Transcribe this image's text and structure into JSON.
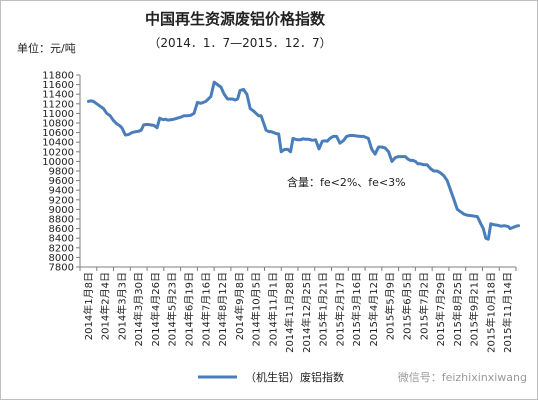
{
  "chart_data": {
    "type": "line",
    "title": "中国再生资源废铝价格指数",
    "subtitle": "（2014．1．7—2015．12．7）",
    "unit_label": "单位：元/吨",
    "annotation": "含量：fe<2%、fe<3%",
    "legend_label": "（机生铝）废铝指数",
    "legend_position": "bottom",
    "watermark": "微信号：feizhixinxiwang",
    "line_color": "#4a7ebb",
    "grid": false,
    "ylim": [
      7800,
      11800
    ],
    "yticks": [
      7800,
      8000,
      8200,
      8400,
      8600,
      8800,
      9000,
      9200,
      9400,
      9600,
      9800,
      10000,
      10200,
      10400,
      10600,
      10800,
      11000,
      11200,
      11400,
      11600,
      11800
    ],
    "categories": [
      "2014年1月8日",
      "2014年2月4日",
      "2014年3月3日",
      "2014年3月30日",
      "2014年4月26日",
      "2014年5月23日",
      "2014年6月19日",
      "2014年7月16日",
      "2014年8月12日",
      "2014年9月8日",
      "2014年10月5日",
      "2014年11月1日",
      "2014年11月28日",
      "2014年12月25日",
      "2015年1月21日",
      "2015年2月17日",
      "2015年3月16日",
      "2015年4月12日",
      "2015年5月9日",
      "2015年6月5日",
      "2015年7月2日",
      "2015年7月29日",
      "2015年8月25日",
      "2015年9月21日",
      "2015年10月18日",
      "2015年11月14日"
    ],
    "series": [
      {
        "x": [
          0,
          0.15,
          0.3,
          0.5,
          0.7,
          0.9,
          1.1,
          1.3,
          1.5,
          1.7,
          1.85,
          2.0,
          2.2,
          2.4,
          2.6,
          2.85,
          3.0,
          3.15,
          3.3,
          3.5,
          3.7,
          3.9,
          4.1,
          4.25,
          4.45,
          4.6,
          4.75,
          4.95,
          5.1,
          5.3,
          5.5,
          5.7,
          5.9,
          6.1,
          6.3,
          6.5,
          6.7,
          6.85,
          7.0,
          7.15,
          7.3,
          7.5,
          7.7,
          7.9,
          8.1,
          8.3,
          8.45,
          8.6,
          8.75,
          8.9,
          9.05,
          9.25,
          9.45,
          9.65,
          9.85,
          10.0,
          10.15,
          10.3,
          10.45,
          10.6,
          10.75,
          10.9,
          11.05,
          11.2,
          11.35,
          11.5,
          11.7,
          11.9,
          12.05,
          12.2,
          12.35,
          12.5,
          12.65,
          12.8,
          12.95,
          13.15,
          13.35,
          13.55,
          13.75,
          13.95,
          14.1,
          14.25,
          14.4,
          14.6,
          14.8,
          15.0,
          15.2,
          15.4,
          15.6,
          15.8,
          16.0,
          16.2,
          16.4,
          16.55,
          16.7,
          16.9,
          17.1,
          17.3,
          17.5,
          17.7,
          17.9,
          18.1,
          18.3,
          18.5,
          18.7,
          18.9,
          19.05,
          19.2,
          19.35,
          19.5,
          19.65,
          19.8,
          20.0,
          20.2,
          20.4,
          20.6,
          20.8,
          21.0,
          21.2,
          21.4,
          21.6,
          21.8,
          22.0,
          22.2,
          22.4,
          22.6,
          22.8,
          23.0,
          23.2,
          23.4,
          23.55,
          23.7,
          23.85,
          24.0,
          24.2,
          24.4,
          24.6,
          24.8,
          24.95,
          25.05,
          25.15,
          25.3,
          25.5,
          25.65
        ],
        "values": [
          11250,
          11260,
          11250,
          11200,
          11150,
          11100,
          11000,
          10950,
          10850,
          10780,
          10750,
          10700,
          10550,
          10560,
          10600,
          10620,
          10630,
          10650,
          10760,
          10770,
          10760,
          10750,
          10700,
          10900,
          10870,
          10880,
          10860,
          10870,
          10880,
          10900,
          10920,
          10950,
          10950,
          10960,
          11000,
          11230,
          11210,
          11230,
          11250,
          11300,
          11350,
          11650,
          11600,
          11550,
          11400,
          11300,
          11300,
          11300,
          11280,
          11300,
          11480,
          11500,
          11400,
          11100,
          11050,
          11000,
          10950,
          10950,
          10800,
          10650,
          10620,
          10620,
          10600,
          10580,
          10570,
          10200,
          10250,
          10250,
          10200,
          10480,
          10460,
          10450,
          10450,
          10470,
          10460,
          10460,
          10440,
          10450,
          10260,
          10420,
          10430,
          10420,
          10480,
          10520,
          10520,
          10380,
          10430,
          10520,
          10540,
          10540,
          10530,
          10520,
          10520,
          10500,
          10480,
          10250,
          10150,
          10300,
          10300,
          10280,
          10200,
          10000,
          10080,
          10100,
          10100,
          10100,
          10050,
          10020,
          10020,
          10000,
          9950,
          9950,
          9930,
          9930,
          9850,
          9800,
          9800,
          9760,
          9700,
          9600,
          9400,
          9200,
          9000,
          8950,
          8900,
          8880,
          8870,
          8860,
          8850,
          8700,
          8600,
          8400,
          8380,
          8700,
          8680,
          8670,
          8650,
          8660,
          8650,
          8640,
          8600,
          8620,
          8650,
          8660
        ]
      }
    ]
  }
}
